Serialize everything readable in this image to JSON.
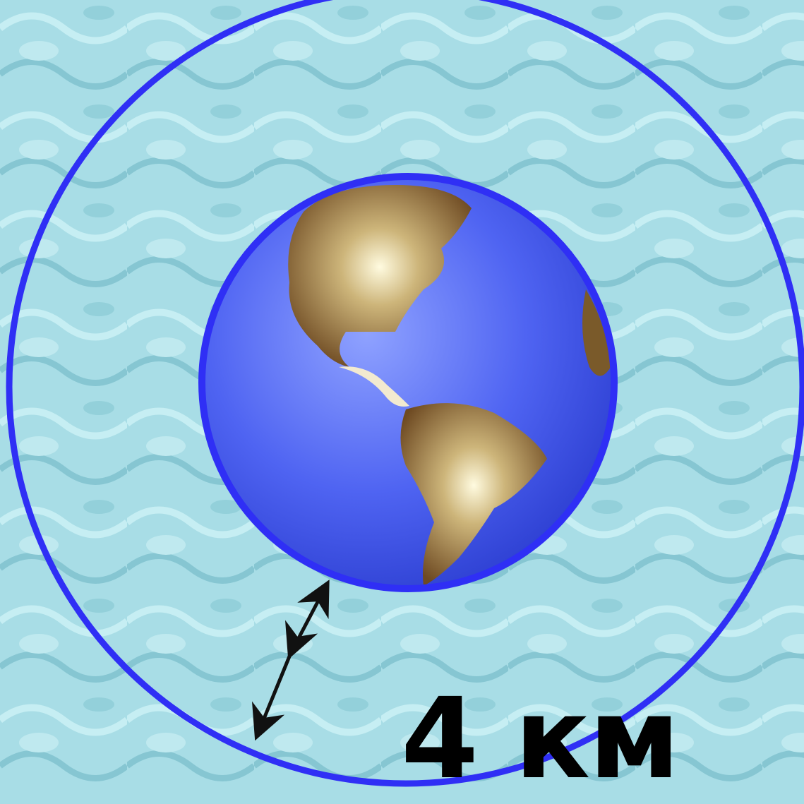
{
  "diagram": {
    "distance_label": "4 км",
    "colors": {
      "background": "#a8dde6",
      "ring": "#2f2ff5",
      "ocean": "#4f64f2",
      "land": "#7a5a2a",
      "arrow": "#111111",
      "label": "#000000"
    },
    "icons": {
      "globe": "earth-globe-americas",
      "arrow": "double-headed-arrow"
    }
  }
}
